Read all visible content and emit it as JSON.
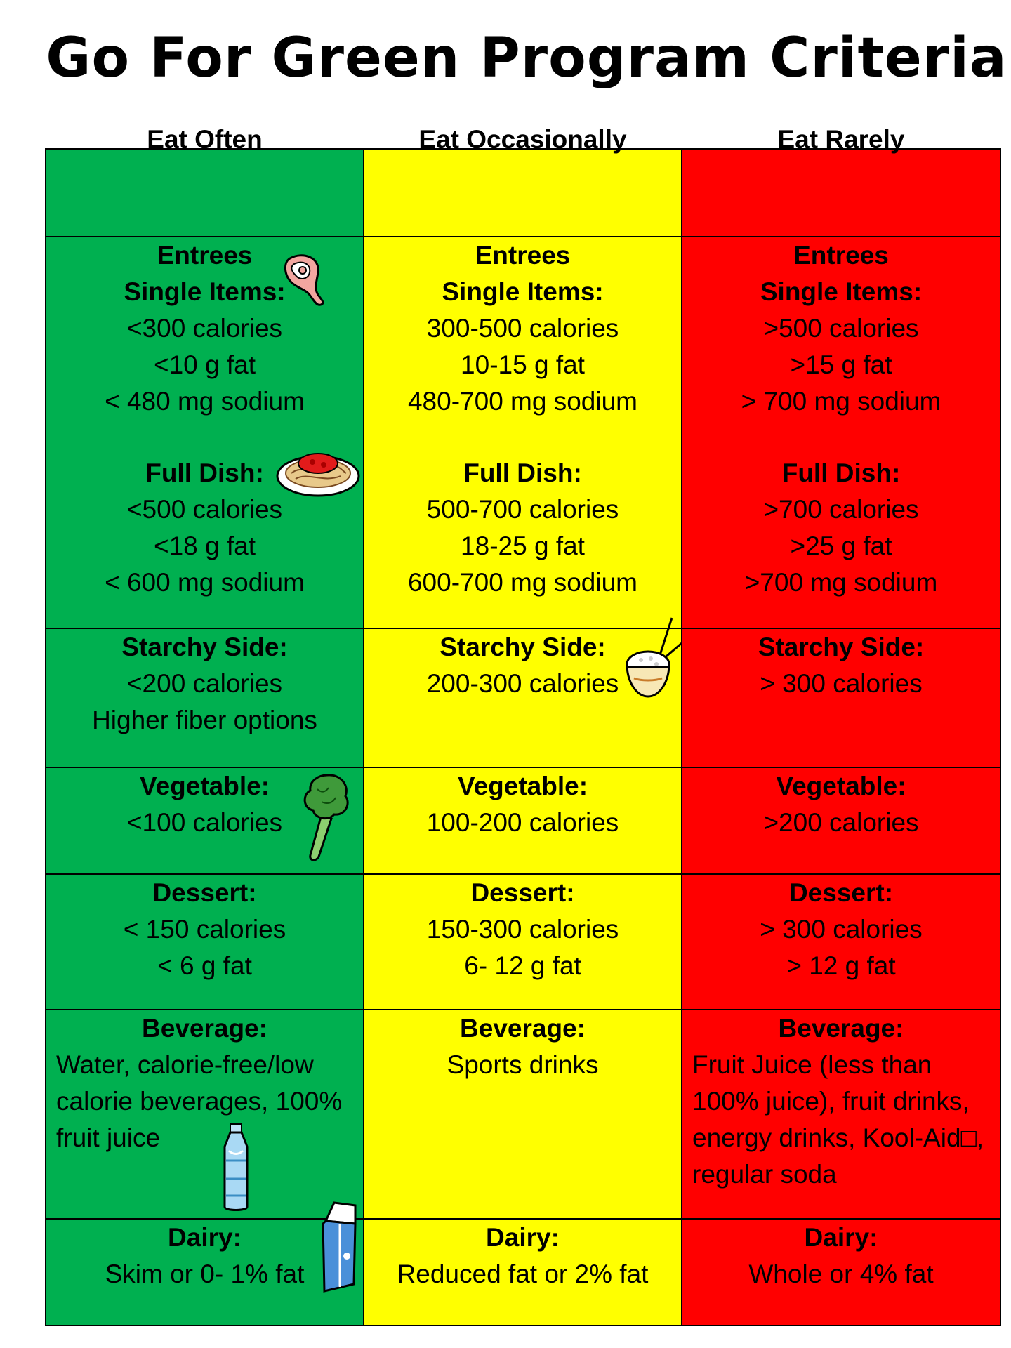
{
  "title": "Go For Green Program Criteria",
  "headers": {
    "often": "Eat Often",
    "occasionally": "Eat Occasionally",
    "rarely": "Eat Rarely"
  },
  "entrees": {
    "label1": "Entrees",
    "label2": "Single Items:",
    "full_label": "Full Dish:",
    "often": {
      "single": [
        "<300 calories",
        "<10 g fat",
        "< 480 mg sodium"
      ],
      "full": [
        "<500 calories",
        "<18 g fat",
        "< 600 mg sodium"
      ]
    },
    "occasionally": {
      "single": [
        "300-500 calories",
        "10-15 g fat",
        "480-700 mg sodium"
      ],
      "full": [
        "500-700 calories",
        "18-25 g fat",
        "600-700 mg sodium"
      ]
    },
    "rarely": {
      "single": [
        ">500 calories",
        ">15 g fat",
        ">  700 mg sodium"
      ],
      "full": [
        ">700 calories",
        ">25 g fat",
        ">700 mg sodium"
      ]
    }
  },
  "starchy": {
    "label": "Starchy Side:",
    "often": [
      "<200 calories",
      "Higher fiber options"
    ],
    "occasionally": [
      "200-300 calories"
    ],
    "rarely": [
      "> 300 calories"
    ]
  },
  "vegetable": {
    "label": "Vegetable:",
    "often": [
      "<100 calories"
    ],
    "occasionally": [
      "100-200 calories"
    ],
    "rarely": [
      ">200 calories"
    ]
  },
  "dessert": {
    "label": "Dessert:",
    "often": [
      "< 150 calories",
      "< 6 g fat"
    ],
    "occasionally": [
      "150-300 calories",
      "6- 12 g fat"
    ],
    "rarely": [
      "> 300 calories",
      "> 12 g fat"
    ]
  },
  "beverage": {
    "label": "Beverage:",
    "often": "Water, calorie-free/low calorie beverages, 100% fruit juice",
    "occasionally": "Sports drinks",
    "rarely": "Fruit Juice (less than 100% juice), fruit drinks, energy drinks, Kool-Aid□, regular soda"
  },
  "dairy": {
    "label": "Dairy:",
    "often": "Skim or  0- 1% fat",
    "occasionally": "Reduced fat or 2% fat",
    "rarely": "Whole or  4% fat"
  },
  "colors": {
    "green": "#00b050",
    "yellow": "#ffff00",
    "red": "#ff0000"
  },
  "icons": [
    "meat-icon",
    "spaghetti-icon",
    "rice-bowl-icon",
    "broccoli-icon",
    "water-bottle-icon",
    "milk-carton-icon"
  ]
}
